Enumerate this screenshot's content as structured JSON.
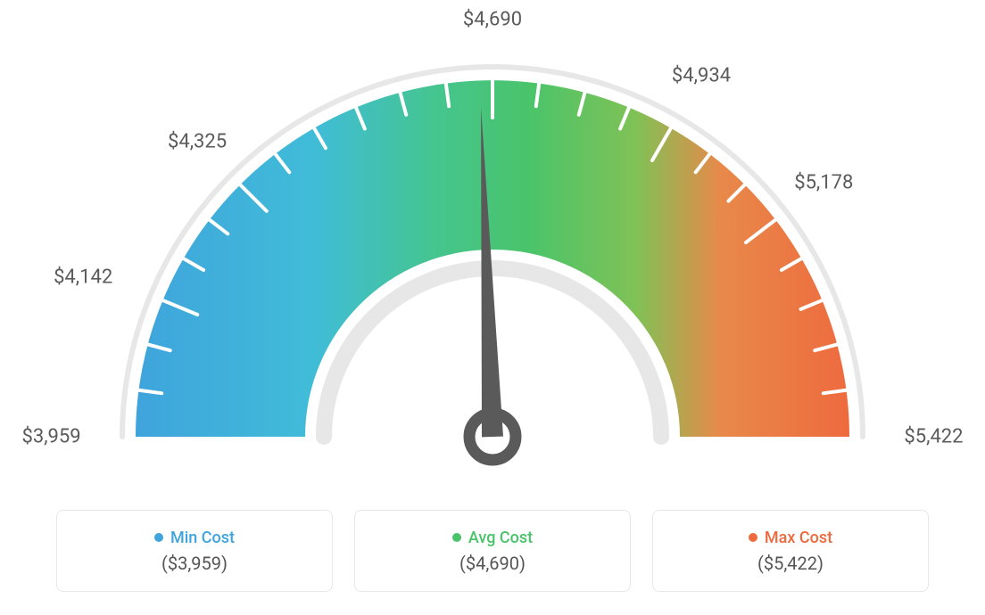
{
  "gauge": {
    "type": "gauge",
    "min": 3959,
    "max": 5422,
    "avg": 4690,
    "needle_angle_deg": 92,
    "ticks": [
      {
        "label": "$3,959",
        "angle_deg": 180
      },
      {
        "label": "$4,142",
        "angle_deg": 157.5
      },
      {
        "label": "$4,325",
        "angle_deg": 135
      },
      {
        "label": "$4,690",
        "angle_deg": 90
      },
      {
        "label": "$4,934",
        "angle_deg": 60
      },
      {
        "label": "$5,178",
        "angle_deg": 37.5
      },
      {
        "label": "$5,422",
        "angle_deg": 0
      }
    ],
    "minor_tick_step_deg": 7.5,
    "major_tick_len": 42,
    "minor_tick_len": 26,
    "outer_radius": 400,
    "inner_radius": 210,
    "rim_gap": 12,
    "rim_width": 6,
    "label_offset": 50,
    "tick_color": "#ffffff",
    "tick_stroke_width": 4,
    "rim_color": "#e7e7e7",
    "gradient_stops": [
      {
        "pct": 0,
        "color": "#3fa4dc"
      },
      {
        "pct": 25,
        "color": "#40bcd8"
      },
      {
        "pct": 42,
        "color": "#45c58f"
      },
      {
        "pct": 55,
        "color": "#4ac46a"
      },
      {
        "pct": 70,
        "color": "#7fc256"
      },
      {
        "pct": 82,
        "color": "#e8894a"
      },
      {
        "pct": 100,
        "color": "#ee6a3e"
      }
    ],
    "needle_color": "#5a5a5a",
    "needle_hub_outer": 26,
    "needle_hub_inner": 13,
    "background_color": "#ffffff",
    "tick_label_fontsize": 22,
    "tick_label_color": "#5b5b5b"
  },
  "legend": {
    "items": [
      {
        "label": "Min Cost",
        "value": "($3,959)",
        "dot_color": "#3fa4dc",
        "label_color": "#3fa4dc"
      },
      {
        "label": "Avg Cost",
        "value": "($4,690)",
        "dot_color": "#4ac46a",
        "label_color": "#4ac46a"
      },
      {
        "label": "Max Cost",
        "value": "($5,422)",
        "dot_color": "#ee6a3e",
        "label_color": "#ee6a3e"
      }
    ],
    "card_border_color": "#e7e7e7",
    "card_border_radius": 8,
    "value_color": "#555555",
    "label_fontsize": 18,
    "value_fontsize": 20
  }
}
